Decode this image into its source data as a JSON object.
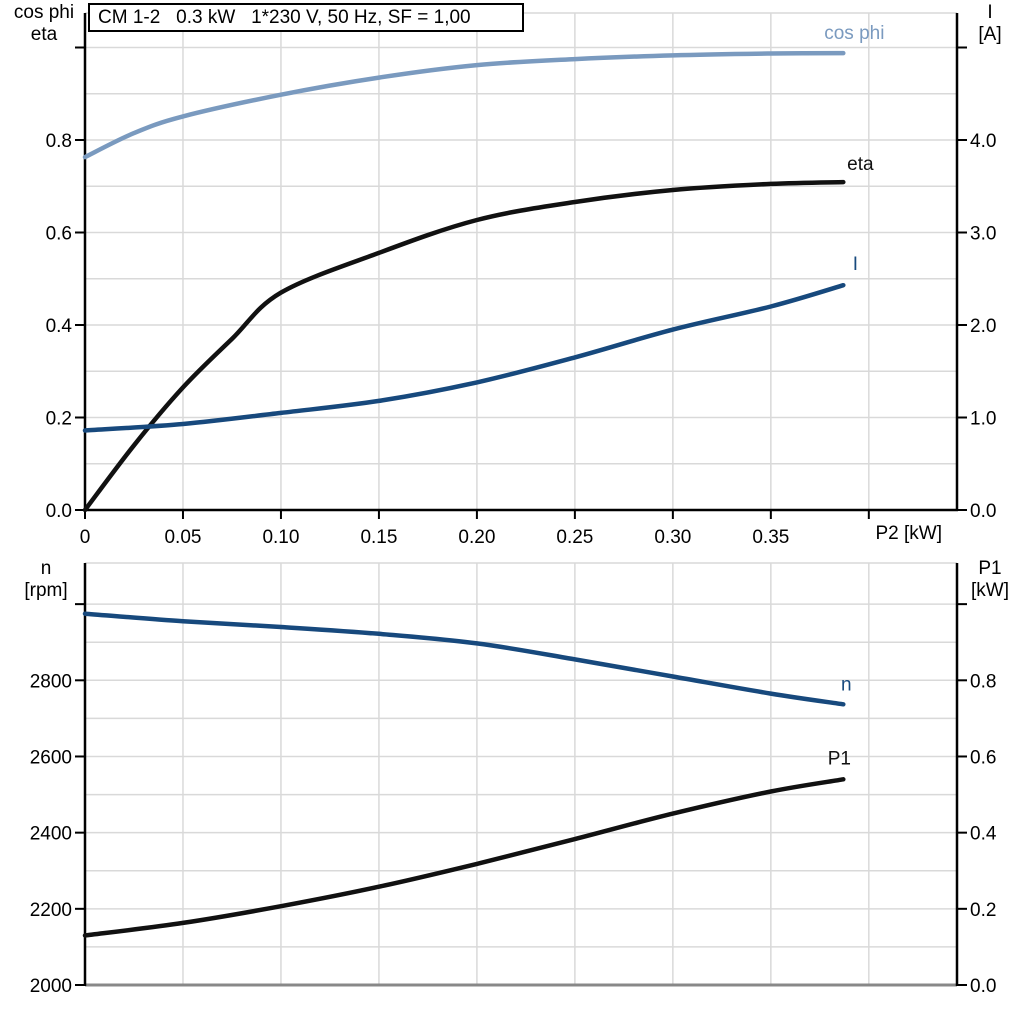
{
  "title_box": {
    "text": "CM 1-2   0.3 kW   1*230 V, 50 Hz, SF = 1,00"
  },
  "colors": {
    "light_blue": "#7A9ABF",
    "dark_blue": "#17497D",
    "black": "#111111",
    "grid": "#D9D9D9",
    "axis": "#000000",
    "frame": "#888888"
  },
  "chart_data": [
    {
      "type": "line",
      "title": "CM 1-2   0.3 kW   1*230 V, 50 Hz, SF = 1,00",
      "x_axis": {
        "label": "P2 [kW]",
        "lim": [
          0,
          0.445
        ],
        "tick_values": [
          0,
          0.05,
          0.1,
          0.15,
          0.2,
          0.25,
          0.3,
          0.35,
          0.4
        ],
        "tick_labels": [
          "0",
          "0.05",
          "0.10",
          "0.15",
          "0.20",
          "0.25",
          "0.30",
          "0.35",
          ""
        ],
        "grid_values": [
          0.05,
          0.1,
          0.15,
          0.2,
          0.25,
          0.3,
          0.35,
          0.4
        ],
        "show_ticks": true
      },
      "left_axis": {
        "title_lines": [
          "cos phi",
          "eta"
        ],
        "lim": [
          0,
          1.0746
        ],
        "tick_values": [
          0,
          0.2,
          0.4,
          0.6,
          0.8
        ],
        "tick_labels": [
          "0.0",
          "0.2",
          "0.4",
          "0.6",
          "0.8"
        ],
        "extra_tick_values": [
          1.0
        ],
        "grid_values": [
          0.1,
          0.2,
          0.3,
          0.4,
          0.5,
          0.6,
          0.7,
          0.8,
          0.9,
          1.0
        ]
      },
      "right_axis": {
        "title_lines": [
          "I",
          "[A]"
        ],
        "lim": [
          0,
          5.373
        ],
        "tick_values": [
          0,
          1,
          2,
          3,
          4
        ],
        "tick_labels": [
          "0.0",
          "1.0",
          "2.0",
          "3.0",
          "4.0"
        ],
        "extra_tick_values": [
          5.0
        ]
      },
      "series": [
        {
          "name": "cos phi",
          "axis": "left",
          "color": "light_blue",
          "points": [
            [
              0,
              0.763
            ],
            [
              0.025,
              0.815
            ],
            [
              0.05,
              0.851
            ],
            [
              0.1,
              0.898
            ],
            [
              0.15,
              0.935
            ],
            [
              0.2,
              0.962
            ],
            [
              0.25,
              0.975
            ],
            [
              0.3,
              0.983
            ],
            [
              0.35,
              0.987
            ],
            [
              0.387,
              0.988
            ]
          ]
        },
        {
          "name": "eta",
          "axis": "left",
          "color": "black",
          "points": [
            [
              0,
              0.0
            ],
            [
              0.025,
              0.14
            ],
            [
              0.05,
              0.265
            ],
            [
              0.075,
              0.37
            ],
            [
              0.1,
              0.47
            ],
            [
              0.15,
              0.556
            ],
            [
              0.2,
              0.627
            ],
            [
              0.25,
              0.666
            ],
            [
              0.3,
              0.692
            ],
            [
              0.35,
              0.705
            ],
            [
              0.387,
              0.709
            ]
          ]
        },
        {
          "name": "I",
          "axis": "right",
          "color": "dark_blue",
          "points": [
            [
              0,
              0.86
            ],
            [
              0.05,
              0.93
            ],
            [
              0.1,
              1.05
            ],
            [
              0.15,
              1.18
            ],
            [
              0.2,
              1.38
            ],
            [
              0.25,
              1.65
            ],
            [
              0.3,
              1.95
            ],
            [
              0.35,
              2.2
            ],
            [
              0.387,
              2.43
            ]
          ]
        }
      ]
    },
    {
      "type": "line",
      "title": "",
      "x_axis": {
        "label": "",
        "lim": [
          0,
          0.445
        ],
        "tick_values": [],
        "tick_labels": [],
        "grid_values": [
          0.05,
          0.1,
          0.15,
          0.2,
          0.25,
          0.3,
          0.35,
          0.4
        ],
        "show_ticks": false
      },
      "left_axis": {
        "title_lines": [
          "n",
          "[rpm]"
        ],
        "lim": [
          2000,
          3108
        ],
        "tick_values": [
          2000,
          2200,
          2400,
          2600,
          2800
        ],
        "tick_labels": [
          "2000",
          "2200",
          "2400",
          "2600",
          "2800"
        ],
        "extra_tick_values": [
          3000
        ],
        "grid_values": [
          2100,
          2200,
          2300,
          2400,
          2500,
          2600,
          2700,
          2800,
          2900,
          3000
        ]
      },
      "right_axis": {
        "title_lines": [
          "P1",
          "[kW]"
        ],
        "lim": [
          0,
          1.108
        ],
        "tick_values": [
          0,
          0.2,
          0.4,
          0.6,
          0.8
        ],
        "tick_labels": [
          "0.0",
          "0.2",
          "0.4",
          "0.6",
          "0.8"
        ],
        "extra_tick_values": [
          1.0
        ]
      },
      "series": [
        {
          "name": "n",
          "axis": "left",
          "color": "dark_blue",
          "points": [
            [
              0,
              2975
            ],
            [
              0.05,
              2955
            ],
            [
              0.1,
              2940
            ],
            [
              0.15,
              2922
            ],
            [
              0.2,
              2897
            ],
            [
              0.25,
              2855
            ],
            [
              0.3,
              2810
            ],
            [
              0.35,
              2765
            ],
            [
              0.387,
              2737
            ]
          ]
        },
        {
          "name": "P1",
          "axis": "right",
          "color": "black",
          "points": [
            [
              0,
              0.13
            ],
            [
              0.05,
              0.163
            ],
            [
              0.1,
              0.207
            ],
            [
              0.15,
              0.258
            ],
            [
              0.2,
              0.318
            ],
            [
              0.25,
              0.383
            ],
            [
              0.3,
              0.45
            ],
            [
              0.35,
              0.508
            ],
            [
              0.387,
              0.54
            ]
          ]
        }
      ]
    }
  ]
}
